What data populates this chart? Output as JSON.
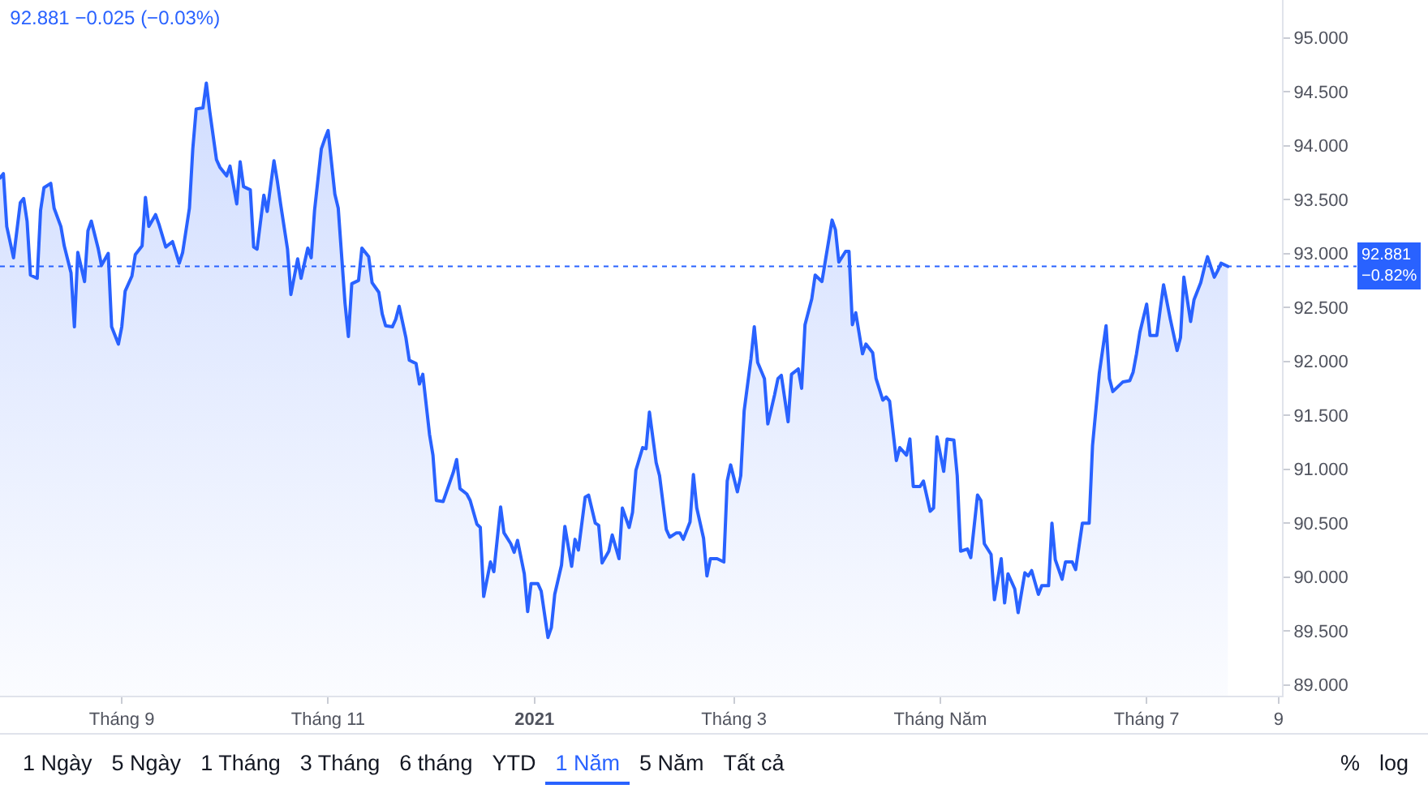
{
  "chart_data": {
    "type": "area",
    "title": "92.881 −0.025 (−0.03%)",
    "color": "#2962ff",
    "x": [
      "2020-07-27",
      "2020-07-28",
      "2020-07-29",
      "2020-07-31",
      "2020-08-02",
      "2020-08-03",
      "2020-08-04",
      "2020-08-05",
      "2020-08-07",
      "2020-08-08",
      "2020-08-09",
      "2020-08-11",
      "2020-08-12",
      "2020-08-14",
      "2020-08-15",
      "2020-08-17",
      "2020-08-18",
      "2020-08-19",
      "2020-08-21",
      "2020-08-22",
      "2020-08-23",
      "2020-08-25",
      "2020-08-26",
      "2020-08-28",
      "2020-08-29",
      "2020-08-31",
      "2020-09-01",
      "2020-09-02",
      "2020-09-04",
      "2020-09-05",
      "2020-09-07",
      "2020-09-08",
      "2020-09-09",
      "2020-09-11",
      "2020-09-12",
      "2020-09-14",
      "2020-09-16",
      "2020-09-18",
      "2020-09-19",
      "2020-09-21",
      "2020-09-22",
      "2020-09-23",
      "2020-09-25",
      "2020-09-26",
      "2020-09-27",
      "2020-09-29",
      "2020-09-30",
      "2020-10-02",
      "2020-10-03",
      "2020-10-05",
      "2020-10-06",
      "2020-10-07",
      "2020-10-09",
      "2020-10-10",
      "2020-10-11",
      "2020-10-13",
      "2020-10-14",
      "2020-10-16",
      "2020-10-17",
      "2020-10-18",
      "2020-10-20",
      "2020-10-21",
      "2020-10-23",
      "2020-10-24",
      "2020-10-26",
      "2020-10-27",
      "2020-10-28",
      "2020-10-30",
      "2020-10-31",
      "2020-11-01",
      "2020-11-03",
      "2020-11-04",
      "2020-11-06",
      "2020-11-07",
      "2020-11-08",
      "2020-11-10",
      "2020-11-11",
      "2020-11-13",
      "2020-11-14",
      "2020-11-16",
      "2020-11-17",
      "2020-11-18",
      "2020-11-20",
      "2020-11-21",
      "2020-11-22",
      "2020-11-24",
      "2020-11-25",
      "2020-11-27",
      "2020-11-28",
      "2020-11-29",
      "2020-12-01",
      "2020-12-02",
      "2020-12-03",
      "2020-12-05",
      "2020-12-06",
      "2020-12-08",
      "2020-12-09",
      "2020-12-10",
      "2020-12-12",
      "2020-12-13",
      "2020-12-15",
      "2020-12-16",
      "2020-12-17",
      "2020-12-19",
      "2020-12-20",
      "2020-12-22",
      "2020-12-23",
      "2020-12-25",
      "2020-12-26",
      "2020-12-27",
      "2020-12-29",
      "2020-12-30",
      "2020-12-31",
      "2021-01-02",
      "2021-01-03",
      "2021-01-05",
      "2021-01-06",
      "2021-01-07",
      "2021-01-09",
      "2021-01-10",
      "2021-01-12",
      "2021-01-13",
      "2021-01-14",
      "2021-01-16",
      "2021-01-17",
      "2021-01-19",
      "2021-01-20",
      "2021-01-21",
      "2021-01-23",
      "2021-01-24",
      "2021-01-26",
      "2021-01-27",
      "2021-01-29",
      "2021-01-30",
      "2021-01-31",
      "2021-02-02",
      "2021-02-03",
      "2021-02-04",
      "2021-02-06",
      "2021-02-07",
      "2021-02-09",
      "2021-02-10",
      "2021-02-12",
      "2021-02-13",
      "2021-02-14",
      "2021-02-16",
      "2021-02-17",
      "2021-02-18",
      "2021-02-20",
      "2021-02-21",
      "2021-02-22",
      "2021-02-24",
      "2021-02-26",
      "2021-02-27",
      "2021-02-28",
      "2021-03-02",
      "2021-03-03",
      "2021-03-04",
      "2021-03-06",
      "2021-03-07",
      "2021-03-08",
      "2021-03-10",
      "2021-03-11",
      "2021-03-13",
      "2021-03-14",
      "2021-03-15",
      "2021-03-17",
      "2021-03-18",
      "2021-03-20",
      "2021-03-21",
      "2021-03-22",
      "2021-03-24",
      "2021-03-25",
      "2021-03-27",
      "2021-03-28",
      "2021-03-30",
      "2021-03-31",
      "2021-04-01",
      "2021-04-03",
      "2021-04-04",
      "2021-04-05",
      "2021-04-06",
      "2021-04-08",
      "2021-04-09",
      "2021-04-11",
      "2021-04-12",
      "2021-04-14",
      "2021-04-15",
      "2021-04-16",
      "2021-04-18",
      "2021-04-19",
      "2021-04-21",
      "2021-04-22",
      "2021-04-23",
      "2021-04-25",
      "2021-04-26",
      "2021-04-28",
      "2021-04-29",
      "2021-04-30",
      "2021-05-02",
      "2021-05-03",
      "2021-05-05",
      "2021-05-06",
      "2021-05-07",
      "2021-05-09",
      "2021-05-10",
      "2021-05-12",
      "2021-05-13",
      "2021-05-14",
      "2021-05-16",
      "2021-05-17",
      "2021-05-19",
      "2021-05-20",
      "2021-05-21",
      "2021-05-23",
      "2021-05-24",
      "2021-05-26",
      "2021-05-27",
      "2021-05-28",
      "2021-05-30",
      "2021-05-31",
      "2021-06-02",
      "2021-06-03",
      "2021-06-04",
      "2021-06-06",
      "2021-06-07",
      "2021-06-09",
      "2021-06-10",
      "2021-06-12",
      "2021-06-14",
      "2021-06-15",
      "2021-06-17",
      "2021-06-19",
      "2021-06-20",
      "2021-06-21",
      "2021-06-23",
      "2021-06-24",
      "2021-06-26",
      "2021-06-27",
      "2021-06-28",
      "2021-06-29",
      "2021-07-01",
      "2021-07-02",
      "2021-07-04",
      "2021-07-05",
      "2021-07-06",
      "2021-07-08",
      "2021-07-10",
      "2021-07-11",
      "2021-07-12",
      "2021-07-14",
      "2021-07-15",
      "2021-07-17",
      "2021-07-18",
      "2021-07-19",
      "2021-07-21",
      "2021-07-22",
      "2021-07-23",
      "2021-07-25"
    ],
    "values": [
      93.7,
      93.74,
      93.25,
      92.96,
      93.47,
      93.51,
      93.3,
      92.8,
      92.77,
      93.4,
      93.61,
      93.65,
      93.42,
      93.25,
      93.07,
      92.82,
      92.32,
      93.01,
      92.74,
      93.21,
      93.3,
      93.05,
      92.89,
      93.0,
      92.32,
      92.16,
      92.32,
      92.65,
      92.79,
      92.99,
      93.07,
      93.52,
      93.25,
      93.36,
      93.27,
      93.06,
      93.11,
      92.91,
      93.01,
      93.42,
      93.97,
      94.34,
      94.35,
      94.58,
      94.32,
      93.87,
      93.8,
      93.72,
      93.81,
      93.46,
      93.85,
      93.62,
      93.59,
      93.06,
      93.04,
      93.54,
      93.39,
      93.86,
      93.67,
      93.45,
      93.04,
      92.62,
      92.95,
      92.77,
      93.05,
      92.96,
      93.4,
      93.97,
      94.06,
      94.14,
      93.55,
      93.42,
      92.54,
      92.23,
      92.72,
      92.75,
      93.05,
      92.97,
      92.73,
      92.64,
      92.44,
      92.33,
      92.32,
      92.39,
      92.51,
      92.22,
      92.01,
      91.98,
      91.79,
      91.88,
      91.32,
      91.13,
      90.71,
      90.7,
      90.79,
      90.97,
      91.09,
      90.82,
      90.77,
      90.71,
      90.49,
      90.46,
      89.82,
      90.14,
      90.05,
      90.65,
      90.41,
      90.31,
      90.23,
      90.34,
      90.03,
      89.68,
      89.94,
      89.94,
      89.87,
      89.44,
      89.53,
      89.84,
      90.11,
      90.47,
      90.1,
      90.35,
      90.25,
      90.74,
      90.76,
      90.5,
      90.48,
      90.13,
      90.24,
      90.39,
      90.17,
      90.64,
      90.46,
      90.6,
      90.99,
      91.2,
      91.19,
      91.53,
      91.06,
      90.94,
      90.44,
      90.37,
      90.41,
      90.41,
      90.35,
      90.51,
      90.95,
      90.64,
      90.36,
      90.01,
      90.17,
      90.17,
      90.14,
      90.89,
      91.04,
      90.79,
      90.94,
      91.54,
      92.02,
      92.32,
      91.99,
      91.84,
      91.42,
      91.69,
      91.84,
      91.87,
      91.44,
      91.88,
      91.93,
      91.75,
      92.34,
      92.58,
      92.8,
      92.74,
      92.93,
      93.31,
      93.22,
      92.92,
      93.02,
      93.02,
      92.34,
      92.45,
      92.07,
      92.16,
      92.08,
      91.84,
      91.64,
      91.67,
      91.63,
      91.08,
      91.2,
      91.13,
      91.28,
      90.84,
      90.84,
      90.89,
      90.61,
      90.64,
      91.3,
      90.98,
      91.28,
      91.27,
      90.94,
      90.24,
      90.26,
      90.18,
      90.76,
      90.71,
      90.31,
      90.21,
      89.79,
      90.17,
      89.76,
      90.03,
      89.89,
      89.67,
      90.04,
      90.01,
      90.06,
      89.84,
      89.92,
      89.92,
      90.5,
      90.16,
      89.98,
      90.14,
      90.14,
      90.07,
      90.5,
      90.5,
      91.22,
      91.89,
      92.33,
      91.84,
      91.72,
      91.78,
      91.81,
      91.82,
      91.9,
      92.07,
      92.27,
      92.53,
      92.24,
      92.24,
      92.48,
      92.71,
      92.39,
      92.1,
      92.22,
      92.78,
      92.37,
      92.57,
      92.73,
      92.86,
      92.97,
      92.78,
      92.84,
      92.91,
      92.88
    ],
    "xlim": [
      "2020-07-27",
      "2021-08-10"
    ],
    "xticks": [
      {
        "value": "2020-09-01",
        "label": "Tháng 9"
      },
      {
        "value": "2020-11-01",
        "label": "Tháng 11"
      },
      {
        "value": "2021-01-01",
        "label": "2021"
      },
      {
        "value": "2021-03-01",
        "label": "Tháng 3"
      },
      {
        "value": "2021-05-01",
        "label": "Tháng Năm"
      },
      {
        "value": "2021-07-01",
        "label": "Tháng 7"
      },
      {
        "value": "2021-08-09",
        "label": "9"
      }
    ],
    "ylim": [
      88.9,
      95.35
    ],
    "yticks": [
      {
        "value": 89,
        "label": "89.000"
      },
      {
        "value": 89.5,
        "label": "89.500"
      },
      {
        "value": 90,
        "label": "90.000"
      },
      {
        "value": 90.5,
        "label": "90.500"
      },
      {
        "value": 91,
        "label": "91.000"
      },
      {
        "value": 91.5,
        "label": "91.500"
      },
      {
        "value": 92,
        "label": "92.000"
      },
      {
        "value": 92.5,
        "label": "92.500"
      },
      {
        "value": 93,
        "label": "93.000"
      },
      {
        "value": 93.5,
        "label": "93.500"
      },
      {
        "value": 94,
        "label": "94.000"
      },
      {
        "value": 94.5,
        "label": "94.500"
      },
      {
        "value": 95,
        "label": "95.000"
      }
    ],
    "ref_lines": [
      {
        "axis": "y",
        "value": 92.881,
        "label": "92.881\n−0.82%",
        "color": "#2962ff",
        "line_style": "dotted"
      }
    ],
    "annotations": [
      "1 Ngày",
      "5 Ngày",
      "1 Tháng",
      "3 Tháng",
      "6 tháng",
      "YTD",
      "1 Năm",
      "5 Năm",
      "Tất cả",
      "%",
      "log"
    ]
  }
}
